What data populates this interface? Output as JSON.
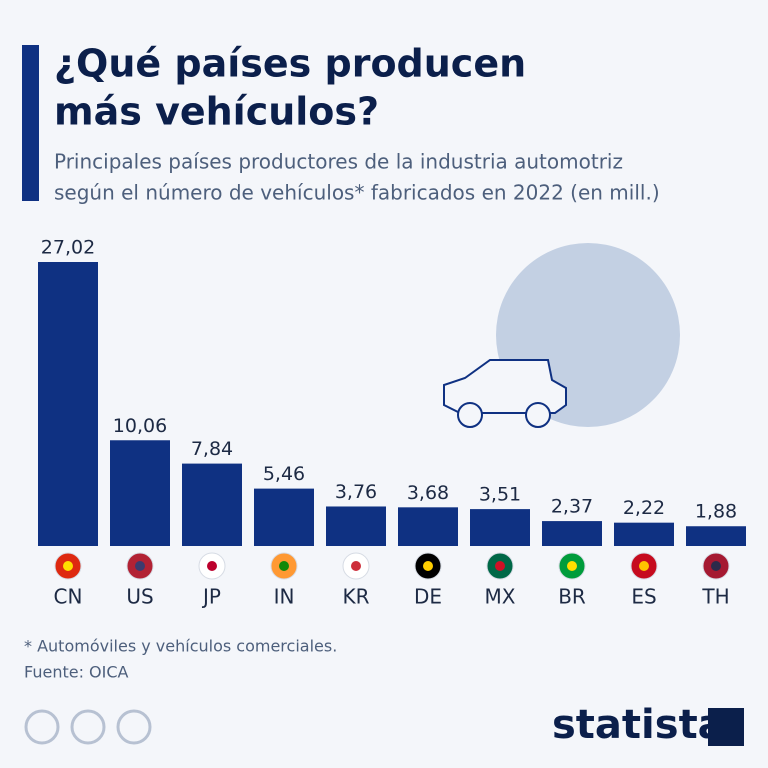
{
  "chart_data": {
    "type": "bar",
    "title": [
      "¿Qué países producen",
      "más vehículos?"
    ],
    "subtitle": [
      "Principales países productores de la industria automotriz",
      "según el número de vehículos* fabricados en 2022 (en mill.)"
    ],
    "categories": [
      "CN",
      "US",
      "JP",
      "IN",
      "KR",
      "DE",
      "MX",
      "BR",
      "ES",
      "TH"
    ],
    "values": [
      27.02,
      10.06,
      7.84,
      5.46,
      3.76,
      3.68,
      3.51,
      2.37,
      2.22,
      1.88
    ],
    "value_labels": [
      "27,02",
      "10,06",
      "7,84",
      "5,46",
      "3,76",
      "3,68",
      "3,51",
      "2,37",
      "2,22",
      "1,88"
    ],
    "color": "#0f3182",
    "footnote": "* Automóviles y vehículos comerciales.",
    "source": "Fuente: OICA",
    "brand": "statista"
  }
}
